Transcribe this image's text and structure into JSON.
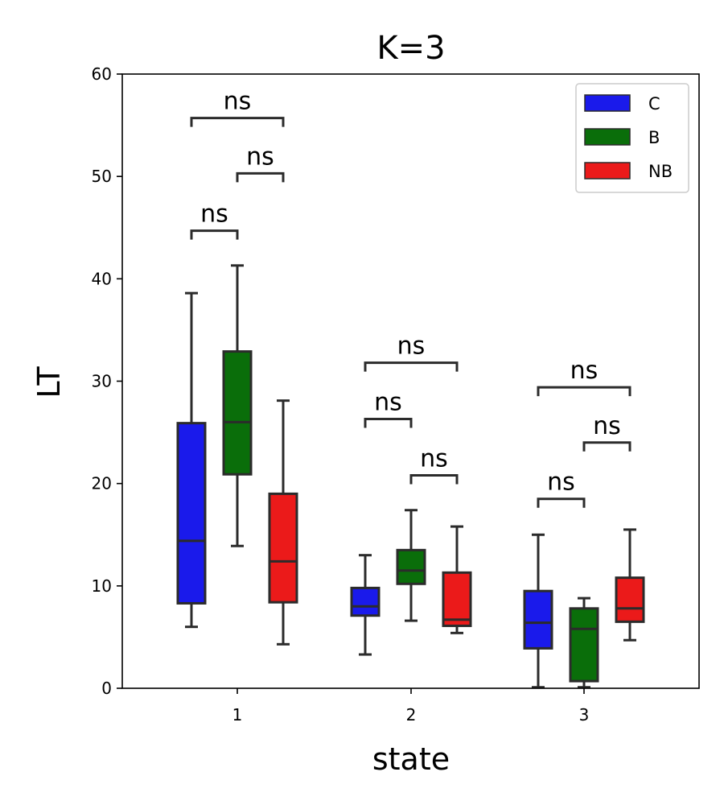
{
  "chart_data": {
    "type": "box",
    "title": "K=3",
    "xlabel": "state",
    "ylabel": "LT",
    "categories": [
      "1",
      "2",
      "3"
    ],
    "ylim": [
      0,
      60
    ],
    "yticks": [
      0,
      10,
      20,
      30,
      40,
      50,
      60
    ],
    "grid": false,
    "legend_position": "top-right",
    "series": [
      {
        "name": "C",
        "color": "#1a1aeb",
        "boxes": [
          {
            "category": "1",
            "whisker_low": 6.0,
            "q1": 8.3,
            "median": 14.4,
            "q3": 25.9,
            "whisker_high": 38.6
          },
          {
            "category": "2",
            "whisker_low": 3.3,
            "q1": 7.1,
            "median": 8.0,
            "q3": 9.8,
            "whisker_high": 13.0
          },
          {
            "category": "3",
            "whisker_low": 0.1,
            "q1": 3.9,
            "median": 6.4,
            "q3": 9.5,
            "whisker_high": 15.0
          }
        ]
      },
      {
        "name": "B",
        "color": "#0a6e0a",
        "boxes": [
          {
            "category": "1",
            "whisker_low": 13.9,
            "q1": 20.9,
            "median": 26.0,
            "q3": 32.9,
            "whisker_high": 41.3
          },
          {
            "category": "2",
            "whisker_low": 6.6,
            "q1": 10.2,
            "median": 11.5,
            "q3": 13.5,
            "whisker_high": 17.4
          },
          {
            "category": "3",
            "whisker_low": 0.1,
            "q1": 0.7,
            "median": 5.8,
            "q3": 7.8,
            "whisker_high": 8.8
          }
        ]
      },
      {
        "name": "NB",
        "color": "#eb1a1a",
        "boxes": [
          {
            "category": "1",
            "whisker_low": 4.3,
            "q1": 8.4,
            "median": 12.4,
            "q3": 19.0,
            "whisker_high": 28.1
          },
          {
            "category": "2",
            "whisker_low": 5.4,
            "q1": 6.1,
            "median": 6.7,
            "q3": 11.3,
            "whisker_high": 15.8
          },
          {
            "category": "3",
            "whisker_low": 4.7,
            "q1": 6.5,
            "median": 7.8,
            "q3": 10.8,
            "whisker_high": 15.5
          }
        ]
      }
    ],
    "annotations": [
      {
        "category": "1",
        "from": "C",
        "to": "B",
        "y": 44.7,
        "text": "ns"
      },
      {
        "category": "1",
        "from": "B",
        "to": "NB",
        "y": 50.3,
        "text": "ns"
      },
      {
        "category": "1",
        "from": "C",
        "to": "NB",
        "y": 55.7,
        "text": "ns"
      },
      {
        "category": "2",
        "from": "C",
        "to": "B",
        "y": 26.3,
        "text": "ns"
      },
      {
        "category": "2",
        "from": "B",
        "to": "NB",
        "y": 20.8,
        "text": "ns"
      },
      {
        "category": "2",
        "from": "C",
        "to": "NB",
        "y": 31.8,
        "text": "ns"
      },
      {
        "category": "3",
        "from": "C",
        "to": "B",
        "y": 18.5,
        "text": "ns"
      },
      {
        "category": "3",
        "from": "B",
        "to": "NB",
        "y": 24.0,
        "text": "ns"
      },
      {
        "category": "3",
        "from": "C",
        "to": "NB",
        "y": 29.4,
        "text": "ns"
      }
    ]
  }
}
